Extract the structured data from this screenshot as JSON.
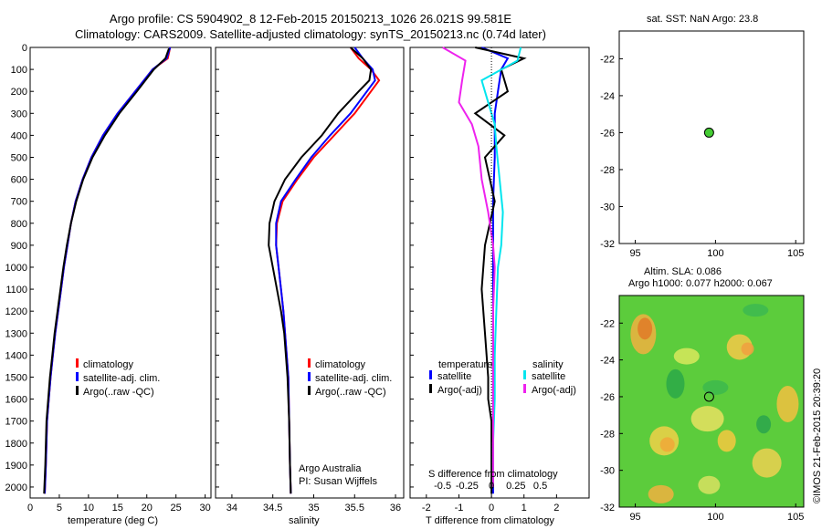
{
  "header": {
    "line1": "Argo profile: CS 5904902_8 12-Feb-2015 20150213_1026 26.021S 99.581E",
    "line2": "Climatology: CARS2009. Satellite-adjusted climatology: synTS_20150213.nc (0.74d later)"
  },
  "colors": {
    "climatology": "#ff0000",
    "satellite": "#0000ff",
    "argo": "#000000",
    "sat_salinity": "#00e5ee",
    "argo_salinity": "#ee22ee",
    "float_marker": "#44cc33"
  },
  "panel_labels": {
    "temp_xlabel": "temperature (deg C)",
    "sal_xlabel": "salinity",
    "diff_xlabel": "T difference from climatology",
    "diff_toplabel": "S difference from climatology",
    "credit_line1": "Argo Australia",
    "credit_line2": "PI: Susan Wijffels"
  },
  "legend_profile": {
    "items": [
      "climatology",
      "satellite-adj. clim.",
      "Argo(..raw -QC)"
    ]
  },
  "legend_diff": {
    "col1_title": "temperature",
    "col2_title": "salinity",
    "items": [
      "satellite",
      "Argo(-adj)",
      "satellite",
      "Argo(-adj)"
    ]
  },
  "map_top": {
    "title": "sat. SST: NaN Argo: 23.8"
  },
  "map_bottom": {
    "title1": "Altim. SLA: 0.086",
    "title2": "Argo h1000: 0.077 h2000: 0.067",
    "side_label": "©IMOS 21-Feb-2015 20:39:20"
  },
  "chart_data": [
    {
      "type": "line",
      "panel": "temperature",
      "xlabel": "temperature (deg C)",
      "xlim": [
        0,
        31
      ],
      "ylim": [
        2050,
        0
      ],
      "xticks": [
        0,
        5,
        10,
        15,
        20,
        25,
        30
      ],
      "yticks": [
        0,
        100,
        200,
        300,
        400,
        500,
        600,
        700,
        800,
        900,
        1000,
        1100,
        1200,
        1300,
        1400,
        1500,
        1600,
        1700,
        1800,
        1900,
        2000
      ],
      "series": [
        {
          "name": "climatology",
          "color": "#ff0000",
          "x": [
            24,
            23.6,
            21,
            18,
            15,
            12.5,
            10.5,
            9,
            7.8,
            7,
            6.4,
            5.8,
            5.3,
            4.8,
            4.3,
            3.9,
            3.5,
            3.2,
            2.9,
            2.7,
            2.5
          ],
          "y": [
            0,
            50,
            100,
            200,
            300,
            400,
            500,
            600,
            700,
            800,
            900,
            1000,
            1100,
            1200,
            1300,
            1400,
            1500,
            1600,
            1700,
            1900,
            2030
          ]
        },
        {
          "name": "satellite-adj. clim.",
          "color": "#0000ff",
          "x": [
            24,
            23.4,
            21,
            18,
            15,
            12.5,
            10.5,
            9,
            7.8,
            7,
            6.4,
            5.8,
            5.3,
            4.8,
            4.3,
            3.9,
            3.5,
            3.2,
            2.9,
            2.7,
            2.5
          ],
          "y": [
            0,
            50,
            100,
            200,
            300,
            400,
            500,
            600,
            700,
            800,
            900,
            1000,
            1100,
            1200,
            1300,
            1400,
            1500,
            1600,
            1700,
            1900,
            2030
          ]
        },
        {
          "name": "Argo(..raw -QC)",
          "color": "#000000",
          "x": [
            23.8,
            23.2,
            21.2,
            18.3,
            15.3,
            12.8,
            10.7,
            9.1,
            7.9,
            7,
            6.3,
            5.7,
            5.2,
            4.7,
            4.2,
            3.8,
            3.4,
            3.1,
            2.8,
            2.6,
            2.4
          ],
          "y": [
            5,
            50,
            100,
            200,
            300,
            400,
            500,
            600,
            700,
            800,
            900,
            1000,
            1100,
            1200,
            1300,
            1400,
            1500,
            1600,
            1700,
            1900,
            2030
          ]
        }
      ]
    },
    {
      "type": "line",
      "panel": "salinity",
      "xlabel": "salinity",
      "xlim": [
        33.8,
        36.1
      ],
      "ylim": [
        2050,
        0
      ],
      "xticks": [
        34,
        34.5,
        35,
        35.5,
        36
      ],
      "series": [
        {
          "name": "climatology",
          "color": "#ff0000",
          "x": [
            35.45,
            35.55,
            35.7,
            35.8,
            35.7,
            35.5,
            35.25,
            35.0,
            34.8,
            34.62,
            34.55,
            34.54,
            34.57,
            34.6,
            34.63,
            34.65,
            34.67,
            34.69,
            34.7,
            34.71,
            34.72
          ],
          "y": [
            0,
            50,
            100,
            150,
            200,
            300,
            400,
            500,
            600,
            700,
            800,
            900,
            1000,
            1100,
            1200,
            1300,
            1400,
            1500,
            1700,
            1900,
            2030
          ]
        },
        {
          "name": "satellite-adj. clim.",
          "color": "#0000ff",
          "x": [
            35.5,
            35.6,
            35.72,
            35.75,
            35.65,
            35.45,
            35.2,
            34.97,
            34.78,
            34.6,
            34.54,
            34.54,
            34.57,
            34.6,
            34.63,
            34.65,
            34.67,
            34.69,
            34.7,
            34.71,
            34.72
          ],
          "y": [
            0,
            50,
            100,
            150,
            200,
            300,
            400,
            500,
            600,
            700,
            800,
            900,
            1000,
            1100,
            1200,
            1300,
            1400,
            1500,
            1700,
            1900,
            2030
          ]
        },
        {
          "name": "Argo(..raw -QC)",
          "color": "#000000",
          "x": [
            35.45,
            35.6,
            35.7,
            35.68,
            35.55,
            35.3,
            35.1,
            34.85,
            34.65,
            34.52,
            34.46,
            34.45,
            34.5,
            34.55,
            34.6,
            34.64,
            34.66,
            34.68,
            34.7,
            34.71,
            34.72
          ],
          "y": [
            0,
            50,
            100,
            150,
            200,
            300,
            400,
            500,
            600,
            700,
            800,
            900,
            1000,
            1100,
            1200,
            1300,
            1400,
            1500,
            1700,
            1900,
            2030
          ]
        }
      ]
    },
    {
      "type": "line",
      "panel": "difference",
      "xlabel": "T difference from climatology",
      "title": "S difference from climatology",
      "xlim": [
        -2.5,
        3
      ],
      "xticks": [
        -2,
        -1,
        0,
        1,
        2
      ],
      "top_ticks": [
        "-0.5",
        "-0.25",
        "0",
        "0.25",
        "0.5"
      ],
      "series": [
        {
          "name": "satellite",
          "group": "temperature",
          "color": "#0000ff",
          "x": [
            -0.3,
            0.5,
            0.3,
            0.2,
            0.1,
            0.1,
            0.1,
            0.05,
            0.05,
            0.05,
            0.05,
            0.05,
            0.05,
            0.05,
            0.05,
            0.05
          ],
          "y": [
            0,
            50,
            100,
            200,
            300,
            400,
            500,
            700,
            900,
            1100,
            1300,
            1500,
            1600,
            1700,
            1900,
            2030
          ]
        },
        {
          "name": "Argo(-adj)",
          "group": "temperature",
          "color": "#000000",
          "x": [
            -0.5,
            1.0,
            0.3,
            0.5,
            -0.5,
            0.4,
            -0.2,
            0.1,
            -0.2,
            -0.3,
            -0.2,
            -0.1,
            -0.1,
            0,
            0,
            0
          ],
          "y": [
            0,
            50,
            100,
            200,
            300,
            400,
            500,
            700,
            900,
            1100,
            1300,
            1500,
            1600,
            1700,
            1900,
            2030
          ]
        },
        {
          "name": "satellite",
          "group": "salinity",
          "color": "#00e5ee",
          "x": [
            0.9,
            0.8,
            -0.3,
            -0.1,
            0.1,
            0.15,
            0.25,
            0.35,
            0.3,
            0.2,
            0.15,
            0.1,
            0.1,
            0.05,
            0.05
          ],
          "y": [
            0,
            60,
            150,
            250,
            350,
            450,
            600,
            750,
            900,
            1000,
            1200,
            1400,
            1600,
            1800,
            2000
          ]
        },
        {
          "name": "Argo(-adj)",
          "group": "salinity",
          "color": "#ee22ee",
          "x": [
            -1.5,
            -0.8,
            -0.9,
            -1.0,
            -0.6,
            -0.4,
            -0.3,
            -0.1,
            0.05,
            0.1,
            0.05,
            0.05,
            0.05,
            0.05,
            0.05
          ],
          "y": [
            0,
            60,
            150,
            250,
            350,
            450,
            600,
            750,
            900,
            1000,
            1200,
            1400,
            1600,
            1800,
            2000
          ]
        }
      ]
    },
    {
      "type": "scatter",
      "panel": "map_sst",
      "title": "sat. SST: NaN Argo: 23.8",
      "xlim": [
        94,
        105.5
      ],
      "ylim": [
        -32,
        -20.5
      ],
      "xticks": [
        95,
        100,
        105
      ],
      "yticks": [
        -22,
        -24,
        -26,
        -28,
        -30,
        -32
      ],
      "points": [
        {
          "x": 99.6,
          "y": -26.0
        }
      ]
    },
    {
      "type": "heatmap",
      "panel": "map_sla",
      "title": "Altim. SLA: 0.086",
      "xlim": [
        94,
        105.5
      ],
      "ylim": [
        -32,
        -20.5
      ],
      "xticks": [
        95,
        100,
        105
      ],
      "yticks": [
        -22,
        -24,
        -26,
        -28,
        -30,
        -32
      ],
      "points": [
        {
          "x": 99.6,
          "y": -26.0
        }
      ]
    }
  ]
}
